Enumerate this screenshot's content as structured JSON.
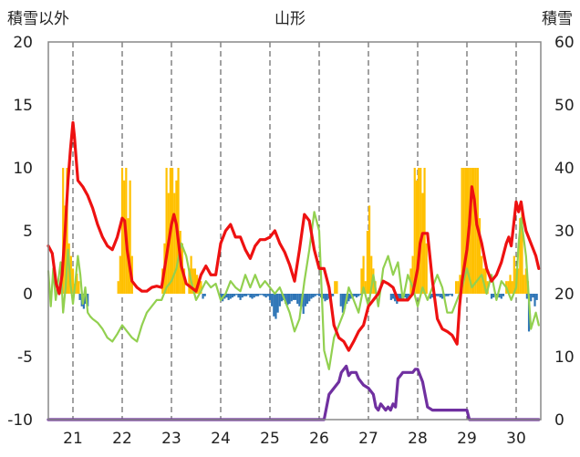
{
  "chart_data": {
    "type": "line",
    "title": "山形",
    "ylabel_left": "積雪以外",
    "ylabel_right": "積雪",
    "ylim_left": [
      -10,
      20
    ],
    "ylim_right": [
      0,
      60
    ],
    "yticks_left": [
      "20",
      "15",
      "10",
      "5",
      "0",
      "-5",
      "-10"
    ],
    "yticks_right": [
      "60",
      "50",
      "40",
      "30",
      "20",
      "10",
      "0"
    ],
    "xlim": [
      20.5,
      30.5
    ],
    "xticks": [
      "21",
      "22",
      "23",
      "24",
      "25",
      "26",
      "27",
      "28",
      "29",
      "30"
    ],
    "grid": "vertical dashed at each day",
    "colors": {
      "red": "#ee1111",
      "green": "#92d050",
      "orange": "#ffc000",
      "blue": "#2e75b6",
      "purple": "#7030a0",
      "grid": "#444444",
      "frame": "#888888"
    },
    "series": [
      {
        "color": "red",
        "axis": "left",
        "x": [
          20.5,
          20.58,
          20.62,
          20.66,
          20.72,
          20.78,
          20.84,
          20.9,
          20.95,
          21.0,
          21.03,
          21.06,
          21.1,
          21.2,
          21.3,
          21.4,
          21.5,
          21.6,
          21.7,
          21.8,
          21.9,
          22.0,
          22.05,
          22.1,
          22.2,
          22.3,
          22.4,
          22.5,
          22.6,
          22.7,
          22.8,
          22.9,
          23.0,
          23.05,
          23.1,
          23.2,
          23.3,
          23.4,
          23.5,
          23.6,
          23.7,
          23.8,
          23.9,
          24.0,
          24.1,
          24.2,
          24.3,
          24.4,
          24.5,
          24.6,
          24.7,
          24.8,
          24.9,
          25.0,
          25.1,
          25.2,
          25.3,
          25.4,
          25.5,
          25.6,
          25.7,
          25.8,
          25.9,
          26.0,
          26.1,
          26.2,
          26.3,
          26.4,
          26.5,
          26.6,
          26.7,
          26.8,
          26.9,
          27.0,
          27.1,
          27.2,
          27.3,
          27.4,
          27.5,
          27.6,
          27.7,
          27.8,
          27.9,
          28.0,
          28.05,
          28.1,
          28.2,
          28.3,
          28.4,
          28.5,
          28.6,
          28.7,
          28.8,
          28.85,
          28.9,
          29.0,
          29.05,
          29.1,
          29.15,
          29.2,
          29.3,
          29.4,
          29.5,
          29.6,
          29.7,
          29.8,
          29.85,
          29.9,
          29.95,
          30.0,
          30.05,
          30.1,
          30.15,
          30.2,
          30.3,
          30.4,
          30.46
        ],
        "y": [
          3.8,
          3.2,
          2.0,
          0.8,
          0.0,
          1.5,
          5.0,
          9.0,
          11.5,
          13.6,
          12.5,
          11.0,
          9.0,
          8.5,
          7.8,
          6.8,
          5.5,
          4.5,
          3.8,
          3.5,
          4.5,
          6.0,
          5.8,
          3.5,
          1.0,
          0.5,
          0.2,
          0.2,
          0.5,
          0.6,
          0.5,
          3.0,
          5.5,
          6.3,
          5.5,
          2.2,
          0.8,
          0.5,
          0.2,
          1.5,
          2.2,
          1.5,
          1.5,
          4.0,
          5.0,
          5.5,
          4.5,
          4.5,
          3.5,
          2.8,
          3.8,
          4.3,
          4.3,
          4.5,
          5.0,
          4.0,
          3.3,
          2.3,
          1.0,
          3.5,
          6.3,
          5.8,
          3.5,
          2.0,
          2.0,
          0.5,
          -2.5,
          -3.5,
          -3.8,
          -4.5,
          -3.8,
          -3.0,
          -2.5,
          -1.0,
          -0.5,
          0.0,
          1.0,
          0.8,
          0.5,
          -0.5,
          -0.5,
          -0.5,
          0.0,
          2.0,
          4.0,
          4.8,
          4.8,
          1.0,
          -2.0,
          -2.8,
          -3.0,
          -3.3,
          -4.0,
          -1.0,
          1.0,
          3.5,
          5.5,
          8.5,
          7.5,
          5.5,
          4.0,
          2.0,
          1.0,
          1.5,
          2.5,
          4.0,
          4.5,
          3.8,
          5.5,
          7.3,
          6.5,
          7.3,
          6.0,
          5.0,
          4.0,
          3.0,
          2.0
        ]
      },
      {
        "color": "green",
        "axis": "left",
        "x": [
          20.5,
          20.55,
          20.6,
          20.65,
          20.7,
          20.75,
          20.8,
          20.85,
          20.9,
          20.95,
          21.0,
          21.05,
          21.1,
          21.15,
          21.2,
          21.25,
          21.3,
          21.35,
          21.4,
          21.5,
          21.6,
          21.7,
          21.8,
          21.9,
          22.0,
          22.1,
          22.2,
          22.3,
          22.4,
          22.5,
          22.6,
          22.7,
          22.8,
          22.9,
          23.0,
          23.1,
          23.2,
          23.3,
          23.4,
          23.5,
          23.6,
          23.7,
          23.8,
          23.9,
          24.0,
          24.1,
          24.2,
          24.3,
          24.4,
          24.5,
          24.6,
          24.7,
          24.8,
          24.9,
          25.0,
          25.1,
          25.2,
          25.3,
          25.4,
          25.5,
          25.6,
          25.7,
          25.8,
          25.9,
          26.0,
          26.1,
          26.2,
          26.3,
          26.4,
          26.5,
          26.6,
          26.7,
          26.8,
          26.9,
          27.0,
          27.1,
          27.2,
          27.3,
          27.4,
          27.5,
          27.6,
          27.7,
          27.8,
          27.9,
          28.0,
          28.1,
          28.2,
          28.3,
          28.4,
          28.5,
          28.6,
          28.7,
          28.8,
          28.9,
          29.0,
          29.1,
          29.2,
          29.3,
          29.4,
          29.5,
          29.6,
          29.7,
          29.8,
          29.9,
          30.0,
          30.05,
          30.1,
          30.2,
          30.3,
          30.4,
          30.46
        ],
        "y": [
          1.8,
          -1.0,
          2.0,
          -0.5,
          1.0,
          2.5,
          -1.5,
          0.5,
          3.5,
          0.8,
          -0.8,
          1.0,
          3.0,
          1.5,
          -0.8,
          0.5,
          -1.5,
          -1.8,
          -2.0,
          -2.3,
          -2.8,
          -3.5,
          -3.8,
          -3.2,
          -2.5,
          -3.0,
          -3.5,
          -3.8,
          -2.5,
          -1.5,
          -1.0,
          -0.5,
          -0.5,
          0.5,
          1.0,
          2.0,
          4.0,
          3.0,
          1.0,
          -0.5,
          0.2,
          1.0,
          0.5,
          0.8,
          -0.5,
          0.0,
          1.0,
          0.5,
          0.2,
          1.5,
          0.5,
          1.5,
          0.5,
          1.0,
          0.5,
          0.0,
          0.5,
          -0.5,
          -1.5,
          -3.0,
          -2.0,
          1.0,
          3.5,
          6.5,
          5.0,
          -4.5,
          -6.0,
          -3.5,
          -2.5,
          -1.5,
          0.5,
          -0.5,
          -1.5,
          0.5,
          -1.0,
          1.5,
          -1.0,
          2.0,
          3.0,
          1.5,
          2.5,
          -0.5,
          1.5,
          0.5,
          -1.0,
          0.5,
          -0.5,
          0.5,
          1.5,
          0.5,
          -1.5,
          -1.5,
          -0.5,
          0.5,
          2.0,
          0.5,
          1.0,
          1.5,
          0.0,
          1.5,
          -0.5,
          1.0,
          0.5,
          -0.5,
          0.5,
          4.0,
          6.0,
          3.0,
          -2.8,
          -1.5,
          -2.5
        ]
      },
      {
        "color": "purple",
        "axis": "right",
        "x": [
          20.5,
          26.1,
          26.2,
          26.3,
          26.4,
          26.45,
          26.55,
          26.6,
          26.65,
          26.75,
          26.8,
          26.9,
          27.0,
          27.1,
          27.15,
          27.2,
          27.25,
          27.35,
          27.4,
          27.45,
          27.5,
          27.55,
          27.6,
          27.65,
          27.7,
          27.8,
          27.9,
          27.95,
          28.0,
          28.05,
          28.1,
          28.15,
          28.2,
          28.3,
          28.8,
          29.0,
          29.05,
          30.46
        ],
        "y": [
          0,
          0,
          4,
          5,
          6,
          7.5,
          8.5,
          7.0,
          7.5,
          7.5,
          6.5,
          5.5,
          5.0,
          4.0,
          2.0,
          1.5,
          2.5,
          1.5,
          2.0,
          1.5,
          2.5,
          2.0,
          6.5,
          7.0,
          7.5,
          7.5,
          7.5,
          8.0,
          8.0,
          7.0,
          6.0,
          4.0,
          2.0,
          1.5,
          1.5,
          1.5,
          0,
          0
        ]
      }
    ],
    "bars_orange": {
      "axis": "left",
      "x": [
        20.76,
        20.8,
        20.84,
        20.88,
        20.92,
        20.96,
        21.0,
        21.04,
        21.08,
        21.12,
        21.92,
        21.96,
        22.0,
        22.04,
        22.08,
        22.12,
        22.16,
        22.2,
        22.82,
        22.86,
        22.9,
        22.94,
        22.98,
        23.02,
        23.06,
        23.1,
        23.14,
        23.18,
        23.22,
        23.26,
        23.36,
        23.4,
        23.44,
        23.48,
        23.52,
        23.56,
        23.6,
        26.32,
        26.36,
        26.86,
        26.9,
        26.94,
        26.98,
        27.02,
        27.06,
        27.1,
        27.14,
        27.86,
        27.9,
        27.94,
        27.98,
        28.02,
        28.06,
        28.1,
        28.14,
        28.18,
        28.78,
        28.82,
        28.86,
        28.9,
        28.94,
        28.98,
        29.02,
        29.06,
        29.1,
        29.14,
        29.18,
        29.22,
        29.26,
        29.3,
        29.34,
        29.38,
        29.42,
        29.8,
        29.84,
        29.88,
        29.92,
        29.96,
        30.0,
        30.04,
        30.08,
        30.12,
        30.16,
        30.2,
        30.24
      ],
      "y": [
        2,
        10,
        7,
        10,
        4,
        3,
        2,
        0.8,
        1.6,
        1,
        1,
        3,
        10,
        9,
        10,
        6,
        9,
        3,
        2,
        4,
        10,
        8,
        10,
        10,
        8,
        9,
        10,
        5,
        4,
        2,
        2,
        3,
        2,
        2,
        1.5,
        1.2,
        1,
        1,
        1,
        2,
        3,
        1,
        5,
        7,
        3,
        2,
        1,
        2,
        3,
        10,
        9,
        10,
        10,
        8,
        10,
        4,
        1,
        1,
        1.5,
        10,
        10,
        10,
        10,
        10,
        10,
        10,
        10,
        10,
        6,
        3,
        2,
        2,
        1,
        1,
        1,
        1.5,
        1,
        3,
        2,
        2,
        6,
        7,
        1.5,
        2,
        1
      ]
    },
    "bars_blue": {
      "axis": "left",
      "x": [
        21.14,
        21.18,
        21.22,
        21.26,
        21.3,
        23.64,
        23.68,
        24.0,
        24.04,
        24.08,
        24.12,
        24.16,
        24.2,
        24.24,
        24.28,
        24.32,
        24.36,
        24.4,
        24.44,
        24.48,
        24.52,
        24.56,
        24.6,
        24.64,
        24.68,
        24.72,
        24.76,
        24.8,
        24.84,
        24.88,
        24.92,
        24.96,
        25.0,
        25.04,
        25.08,
        25.12,
        25.16,
        25.2,
        25.24,
        25.28,
        25.32,
        25.36,
        25.4,
        25.44,
        25.48,
        25.52,
        25.56,
        25.6,
        25.64,
        25.68,
        25.72,
        25.76,
        25.8,
        25.84,
        25.88,
        25.92,
        25.96,
        26.0,
        26.04,
        26.08,
        26.12,
        26.16,
        26.2,
        26.24,
        26.28,
        26.44,
        26.48,
        26.52,
        26.56,
        26.6,
        26.64,
        26.68,
        26.72,
        26.76,
        26.8,
        26.84,
        27.46,
        27.5,
        27.54,
        27.58,
        27.62,
        27.66,
        27.7,
        27.74,
        27.78,
        27.82,
        28.26,
        28.3,
        28.34,
        28.38,
        28.42,
        28.46,
        28.5,
        28.54,
        28.58,
        28.62,
        28.66,
        28.7,
        29.5,
        29.54,
        29.58,
        29.62,
        29.66,
        29.7,
        29.74,
        30.22,
        30.26,
        30.3,
        30.34,
        30.38,
        30.42
      ],
      "y": [
        -0.5,
        -1,
        -1.2,
        -0.8,
        -1,
        -0.4,
        -0.2,
        -0.4,
        -0.6,
        -0.4,
        -0.3,
        -0.5,
        -0.4,
        -0.3,
        -0.2,
        -0.1,
        -0.3,
        -0.5,
        -0.3,
        -0.2,
        -0.2,
        -0.1,
        -0.3,
        -0.4,
        -0.3,
        -0.2,
        -0.2,
        -0.1,
        -0.1,
        -0.2,
        -0.3,
        -0.2,
        -0.5,
        -1,
        -1.8,
        -2,
        -1.5,
        -1,
        -0.6,
        -0.5,
        -0.8,
        -0.9,
        -0.8,
        -0.6,
        -0.5,
        -0.5,
        -0.8,
        -1,
        -1,
        -1.6,
        -1,
        -0.8,
        -0.6,
        -0.4,
        -0.3,
        -0.2,
        -0.1,
        -0.2,
        -0.3,
        -0.4,
        -0.6,
        -0.5,
        -0.4,
        -0.3,
        -0.2,
        -1,
        -1.5,
        -1.2,
        -0.8,
        -0.6,
        -0.4,
        -0.3,
        -0.2,
        -0.3,
        -0.2,
        -0.1,
        -0.5,
        -0.4,
        -0.6,
        -0.8,
        -0.6,
        -0.4,
        -0.3,
        -0.3,
        -0.4,
        -0.5,
        -0.4,
        -0.3,
        -0.3,
        -0.2,
        -0.2,
        -0.3,
        -0.4,
        -0.3,
        -0.2,
        -0.2,
        -0.1,
        -0.2,
        -0.4,
        -0.3,
        -0.2,
        -0.2,
        -0.3,
        -0.4,
        -0.2,
        -0.4,
        -3,
        -0.6,
        -0.3,
        -1,
        -0.5
      ]
    }
  }
}
